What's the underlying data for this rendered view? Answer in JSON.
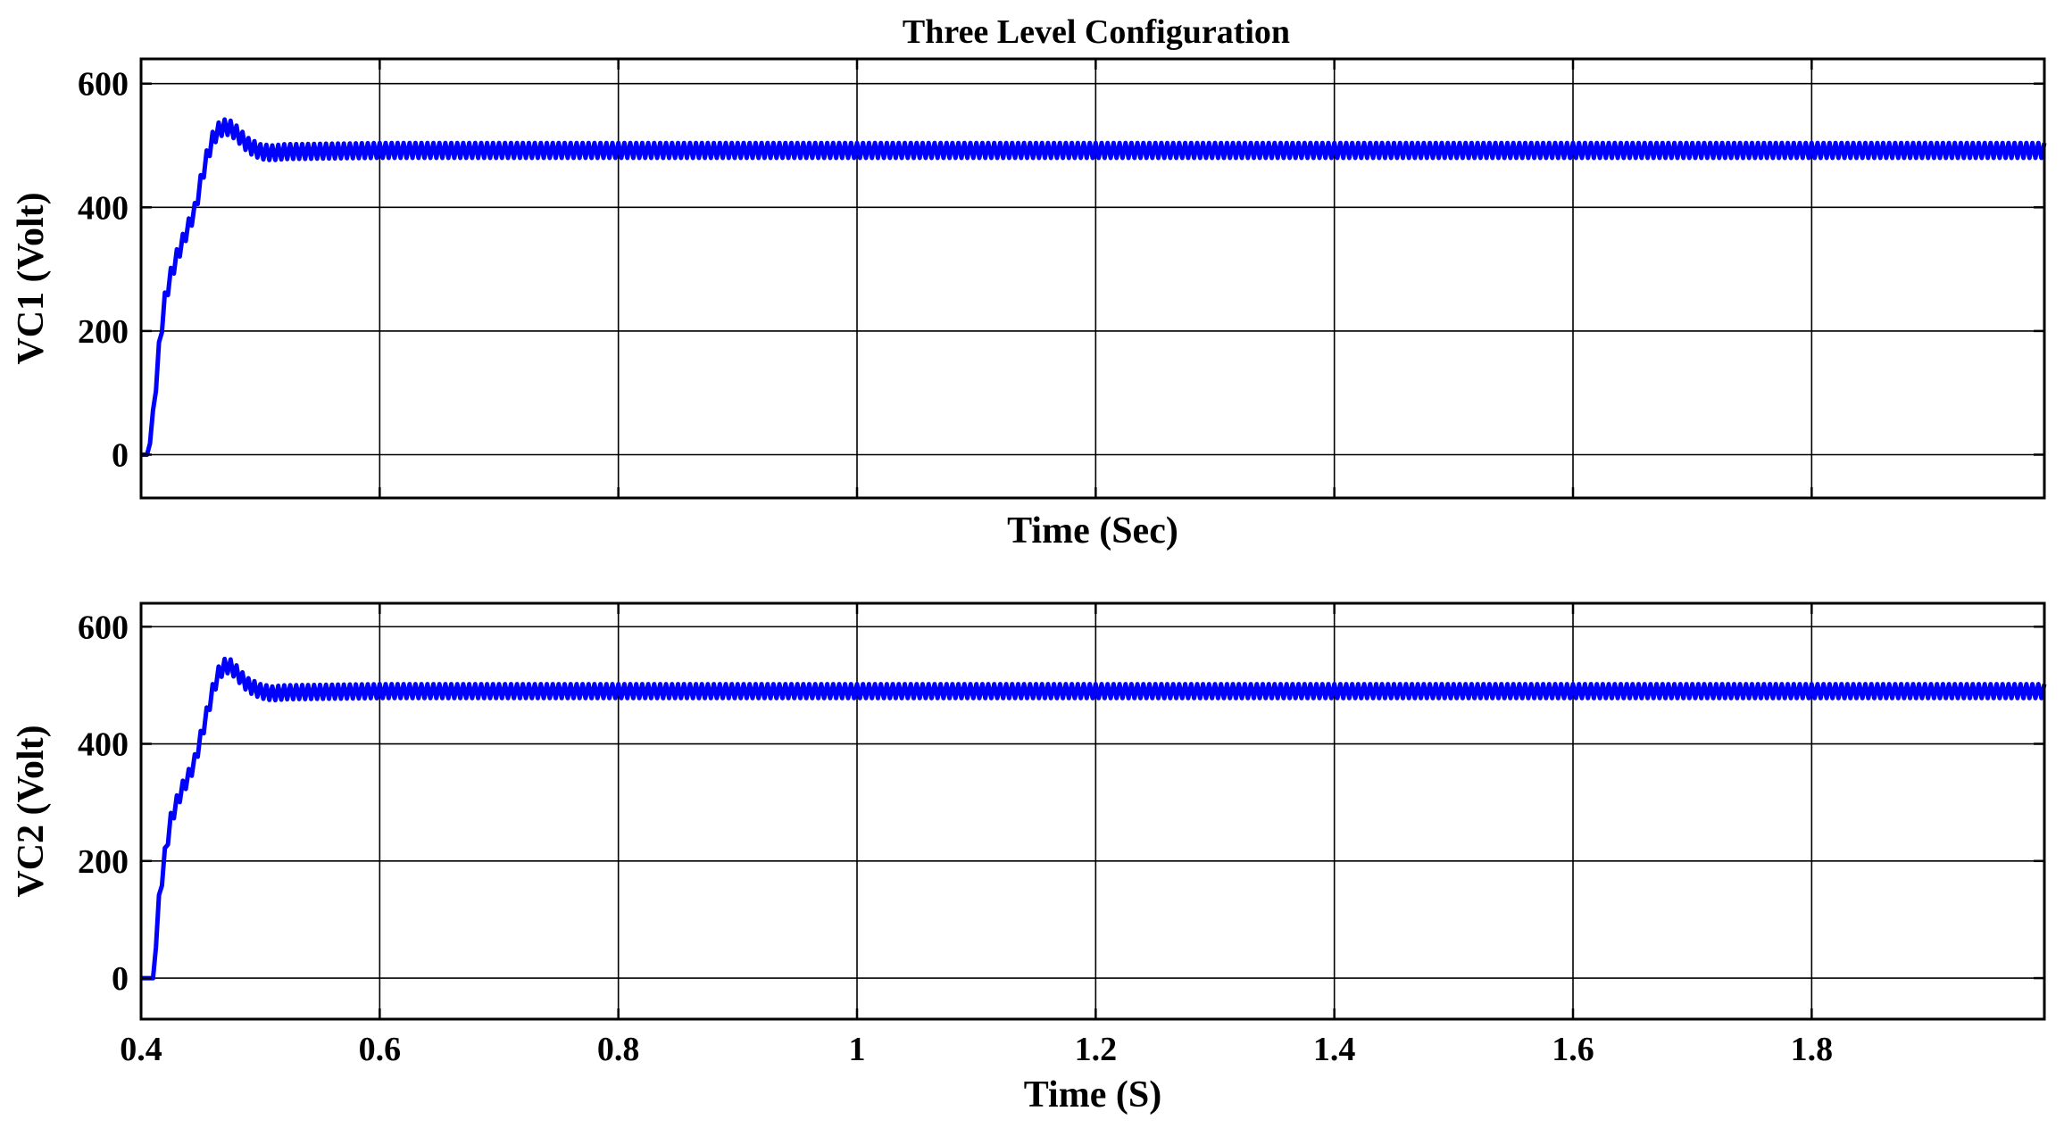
{
  "chart_data": [
    {
      "type": "line",
      "title": "Three Level Configuration",
      "xlabel": "Time (Sec)",
      "ylabel": "VC1 (Volt)",
      "xlim": [
        0.4,
        1.995
      ],
      "ylim": [
        -70,
        640
      ],
      "xticks": [
        0.4,
        0.6,
        0.8,
        1,
        1.2,
        1.4,
        1.6,
        1.8
      ],
      "xtick_labels_shown": false,
      "yticks": [
        0,
        200,
        400,
        600
      ],
      "ytick_labels": [
        "0",
        "200",
        "400",
        "600"
      ],
      "grid": true,
      "series": [
        {
          "color": "#0000ff",
          "points": [
            [
              0.4,
              0
            ],
            [
              0.405,
              0
            ],
            [
              0.41,
              60
            ],
            [
              0.415,
              170
            ],
            [
              0.42,
              250
            ],
            [
              0.425,
              290
            ],
            [
              0.43,
              320
            ],
            [
              0.435,
              345
            ],
            [
              0.44,
              370
            ],
            [
              0.445,
              395
            ],
            [
              0.45,
              440
            ],
            [
              0.455,
              480
            ],
            [
              0.46,
              510
            ],
            [
              0.465,
              525
            ],
            [
              0.47,
              530
            ],
            [
              0.475,
              528
            ],
            [
              0.48,
              520
            ],
            [
              0.485,
              510
            ],
            [
              0.49,
              500
            ],
            [
              0.5,
              490
            ],
            [
              0.51,
              488
            ],
            [
              0.52,
              490
            ],
            [
              0.6,
              492
            ],
            [
              1.0,
              492
            ],
            [
              1.6,
              492
            ],
            [
              1.995,
              492
            ]
          ],
          "ripple": 12
        }
      ]
    },
    {
      "type": "line",
      "xlabel": "Time (S)",
      "ylabel": "VC2 (Volt)",
      "xlim": [
        0.4,
        1.995
      ],
      "ylim": [
        -70,
        640
      ],
      "xticks": [
        0.4,
        0.6,
        0.8,
        1,
        1.2,
        1.4,
        1.6,
        1.8
      ],
      "xtick_labels": [
        "0.4",
        "0.6",
        "0.8",
        "1",
        "1.2",
        "1.4",
        "1.6",
        "1.8"
      ],
      "yticks": [
        0,
        200,
        400,
        600
      ],
      "ytick_labels": [
        "0",
        "200",
        "400",
        "600"
      ],
      "grid": true,
      "series": [
        {
          "color": "#0000ff",
          "points": [
            [
              0.4,
              0
            ],
            [
              0.41,
              0
            ],
            [
              0.415,
              130
            ],
            [
              0.42,
              210
            ],
            [
              0.425,
              270
            ],
            [
              0.43,
              300
            ],
            [
              0.435,
              325
            ],
            [
              0.44,
              345
            ],
            [
              0.445,
              370
            ],
            [
              0.45,
              410
            ],
            [
              0.455,
              450
            ],
            [
              0.46,
              490
            ],
            [
              0.465,
              520
            ],
            [
              0.47,
              533
            ],
            [
              0.475,
              532
            ],
            [
              0.48,
              522
            ],
            [
              0.485,
              510
            ],
            [
              0.49,
              500
            ],
            [
              0.5,
              490
            ],
            [
              0.51,
              486
            ],
            [
              0.52,
              488
            ],
            [
              0.6,
              490
            ],
            [
              1.0,
              490
            ],
            [
              1.6,
              490
            ],
            [
              1.995,
              490
            ]
          ],
          "ripple": 12
        }
      ]
    }
  ]
}
